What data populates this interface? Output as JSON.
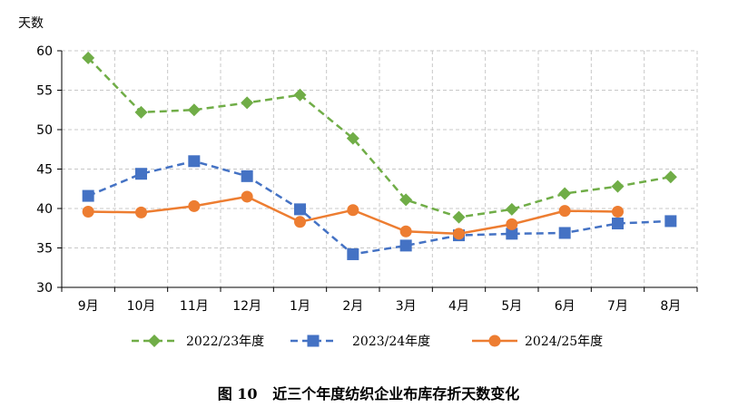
{
  "chart_data": {
    "type": "line",
    "ylabel": "天数",
    "caption": "图 10   近三个年度纺织企业布库存折天数变化",
    "categories": [
      "9月",
      "10月",
      "11月",
      "12月",
      "1月",
      "2月",
      "3月",
      "4月",
      "5月",
      "6月",
      "7月",
      "8月"
    ],
    "ylim": [
      30,
      60
    ],
    "yticks": [
      30,
      35,
      40,
      45,
      50,
      55,
      60
    ],
    "grid": true,
    "legend_position": "bottom",
    "series": [
      {
        "name": "2022/23年度",
        "color": "#70ad47",
        "dash": true,
        "marker": "diamond",
        "values": [
          59.1,
          52.2,
          52.5,
          53.4,
          54.4,
          48.9,
          41.1,
          38.9,
          39.9,
          41.9,
          42.8,
          44.0
        ]
      },
      {
        "name": "2023/24年度",
        "color": "#4472c4",
        "dash": true,
        "marker": "square",
        "values": [
          41.6,
          44.4,
          46.0,
          44.1,
          39.9,
          34.2,
          35.3,
          36.6,
          36.8,
          36.9,
          38.1,
          38.4
        ]
      },
      {
        "name": "2024/25年度",
        "color": "#ed7d31",
        "dash": false,
        "marker": "circle",
        "values": [
          39.6,
          39.5,
          40.3,
          41.5,
          38.3,
          39.8,
          37.1,
          36.8,
          38.0,
          39.7,
          39.6,
          null
        ]
      }
    ]
  }
}
